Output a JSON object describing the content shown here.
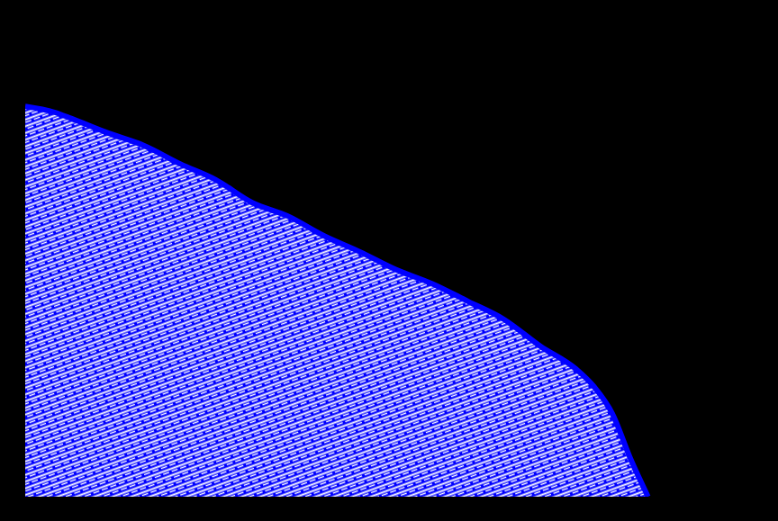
{
  "chart_data": {
    "type": "area",
    "x": [
      0,
      4.0,
      6.4,
      11.4,
      16.3,
      21.3,
      26.2,
      31.2,
      36.1,
      41.1,
      46.0,
      51.0,
      55.9,
      60.9,
      65.8,
      70.8,
      75.7,
      78.2,
      80.7,
      83.2,
      85.6
    ],
    "values": [
      78.6,
      77.4,
      76.1,
      73.2,
      70.7,
      67.0,
      63.8,
      59.2,
      56.5,
      52.5,
      49.3,
      45.7,
      42.9,
      39.3,
      35.7,
      30.3,
      25.7,
      22.1,
      16.7,
      7.6,
      0
    ],
    "xlim": [
      0,
      100
    ],
    "ylim": [
      0,
      100
    ],
    "tick_labels": false,
    "grid": false,
    "color": "#0000ff"
  }
}
